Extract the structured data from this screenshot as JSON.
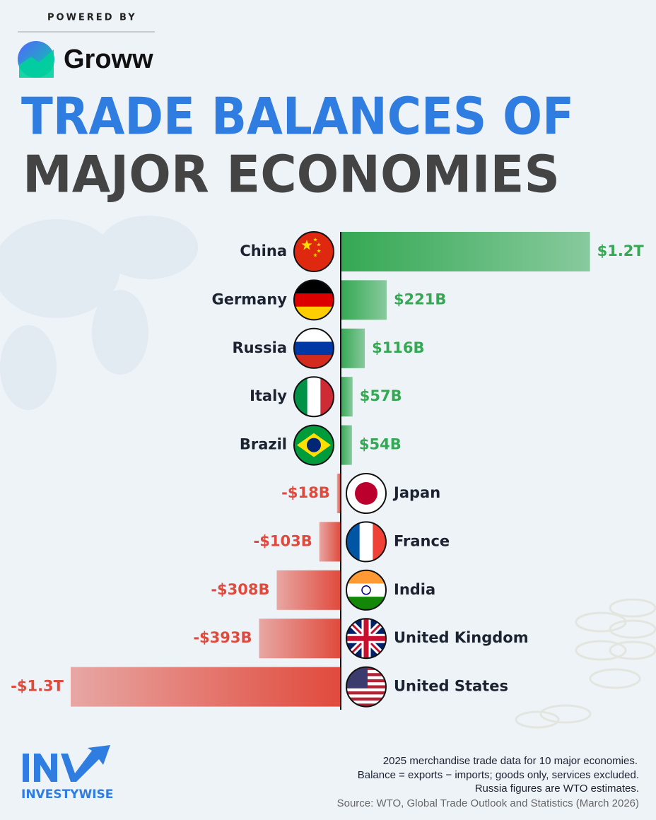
{
  "powered_by": "POWERED BY",
  "brand": "Groww",
  "chart_data": {
    "type": "diverging-bar",
    "title": [
      "TRADE BALANCES OF",
      "MAJOR ECONOMIES"
    ],
    "categories": [
      "China",
      "Germany",
      "Russia",
      "Italy",
      "Brazil",
      "Japan",
      "France",
      "India",
      "United Kingdom",
      "United States"
    ],
    "values": [
      1200000000000,
      221000000000,
      116000000000,
      57000000000,
      54000000000,
      -18000000000,
      -103000000000,
      -308000000000,
      -393000000000,
      -1300000000000
    ],
    "value_labels": [
      "$1.2T",
      "$221B",
      "$116B",
      "$57B",
      "$54B",
      "-$18B",
      "-$103B",
      "-$308B",
      "-$393B",
      "-$1.3T"
    ],
    "color_positive": "#34a853",
    "color_negative": "#e04a3c",
    "notes": [
      "2025 merchandise trade data for 10 major economies.",
      "Balance = exports − imports; goods only, services excluded.",
      "Russia figures are WTO estimates."
    ],
    "source": "Source: WTO, Global Trade Outlook and Statistics (March 2026)"
  },
  "footer_brand": "INVESTYWISE"
}
